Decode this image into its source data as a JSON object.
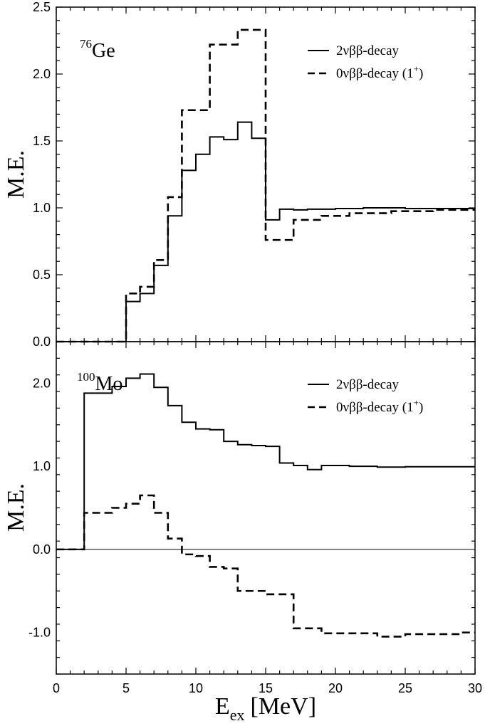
{
  "chart_data": [
    {
      "type": "line",
      "panel": "top",
      "nucleus": {
        "mass": "76",
        "symbol": "Ge"
      },
      "ylabel": "M.E.",
      "xlabel": "",
      "xlim": [
        0,
        30
      ],
      "ylim": [
        0,
        2.5
      ],
      "x_ticks": [
        0,
        5,
        10,
        15,
        20,
        25,
        30
      ],
      "y_ticks": [
        0.0,
        0.5,
        1.0,
        1.5,
        2.0,
        2.5
      ],
      "y_tick_labels": [
        "0.0",
        "0.5",
        "1.0",
        "1.5",
        "2.0",
        "2.5"
      ],
      "legend_position": "top-right",
      "series": [
        {
          "name": "2νββ-decay",
          "style": "solid",
          "x": [
            0,
            5,
            5,
            6,
            6,
            7,
            7,
            8,
            8,
            9,
            9,
            10,
            10,
            11,
            11,
            12,
            12,
            13,
            13,
            14,
            14,
            15,
            15,
            16,
            16,
            17,
            17,
            18,
            18,
            20,
            20,
            22,
            22,
            25,
            25,
            30
          ],
          "y": [
            0,
            0,
            0.3,
            0.3,
            0.36,
            0.36,
            0.57,
            0.57,
            0.94,
            0.94,
            1.28,
            1.28,
            1.4,
            1.4,
            1.53,
            1.53,
            1.51,
            1.51,
            1.64,
            1.64,
            1.52,
            1.52,
            0.91,
            0.91,
            0.99,
            0.99,
            0.985,
            0.985,
            0.99,
            0.99,
            0.995,
            0.995,
            1.0,
            1.0,
            0.995,
            0.995
          ]
        },
        {
          "name": "0νββ-decay (1⁺)",
          "style": "dashed",
          "x": [
            0,
            5,
            5,
            6,
            6,
            7,
            7,
            8,
            8,
            9,
            9,
            11,
            11,
            13,
            13,
            15,
            15,
            17,
            17,
            19,
            19,
            21,
            21,
            24,
            24,
            27,
            27,
            30
          ],
          "y": [
            0,
            0,
            0.36,
            0.36,
            0.41,
            0.41,
            0.61,
            0.61,
            1.08,
            1.08,
            1.73,
            1.73,
            2.22,
            2.22,
            2.33,
            2.33,
            0.76,
            0.76,
            0.91,
            0.91,
            0.94,
            0.94,
            0.96,
            0.96,
            0.975,
            0.975,
            0.985,
            0.985
          ]
        }
      ]
    },
    {
      "type": "line",
      "panel": "bottom",
      "nucleus": {
        "mass": "100",
        "symbol": "Mo"
      },
      "ylabel": "M.E.",
      "xlabel": "E",
      "xlabel_sub": "ex",
      "xlabel_unit": "[MeV]",
      "xlim": [
        0,
        30
      ],
      "ylim": [
        -1.5,
        2.5
      ],
      "x_ticks": [
        0,
        5,
        10,
        15,
        20,
        25,
        30
      ],
      "x_tick_labels": [
        "0",
        "5",
        "10",
        "15",
        "20",
        "25",
        "30"
      ],
      "y_ticks": [
        -1.0,
        0.0,
        1.0,
        2.0
      ],
      "y_tick_labels": [
        "-1.0",
        "0.0",
        "1.0",
        "2.0"
      ],
      "zero_line": true,
      "legend_position": "top-right",
      "series": [
        {
          "name": "2νββ-decay",
          "style": "solid",
          "x": [
            0,
            2,
            2,
            4,
            4,
            5,
            5,
            6,
            6,
            7,
            7,
            8,
            8,
            9,
            9,
            10,
            10,
            11,
            11,
            12,
            12,
            13,
            13,
            14,
            14,
            15,
            15,
            16,
            16,
            17,
            17,
            18,
            18,
            19,
            19,
            21,
            21,
            23,
            23,
            25,
            25,
            30
          ],
          "y": [
            0,
            0,
            1.88,
            1.88,
            1.96,
            1.96,
            2.06,
            2.06,
            2.11,
            2.11,
            1.95,
            1.95,
            1.73,
            1.73,
            1.53,
            1.53,
            1.45,
            1.45,
            1.44,
            1.44,
            1.3,
            1.3,
            1.26,
            1.26,
            1.25,
            1.25,
            1.24,
            1.24,
            1.04,
            1.04,
            1.01,
            1.01,
            0.96,
            0.96,
            1.01,
            1.01,
            1.0,
            1.0,
            0.99,
            0.99,
            0.995,
            0.995
          ]
        },
        {
          "name": "0νββ-decay (1⁺)",
          "style": "dashed",
          "x": [
            0,
            2,
            2,
            4,
            4,
            5,
            5,
            6,
            6,
            7,
            7,
            8,
            8,
            9,
            9,
            10,
            10,
            11,
            11,
            12,
            12,
            13,
            13,
            15,
            15,
            17,
            17,
            19,
            19,
            23,
            23,
            25,
            25,
            29,
            29,
            30
          ],
          "y": [
            0,
            0,
            0.44,
            0.44,
            0.5,
            0.5,
            0.55,
            0.55,
            0.65,
            0.65,
            0.44,
            0.44,
            0.13,
            0.13,
            -0.06,
            -0.06,
            -0.08,
            -0.08,
            -0.21,
            -0.21,
            -0.23,
            -0.23,
            -0.5,
            -0.5,
            -0.54,
            -0.54,
            -0.95,
            -0.95,
            -1.01,
            -1.01,
            -1.05,
            -1.05,
            -1.02,
            -1.02,
            -1.0,
            -1.0
          ]
        }
      ]
    }
  ]
}
